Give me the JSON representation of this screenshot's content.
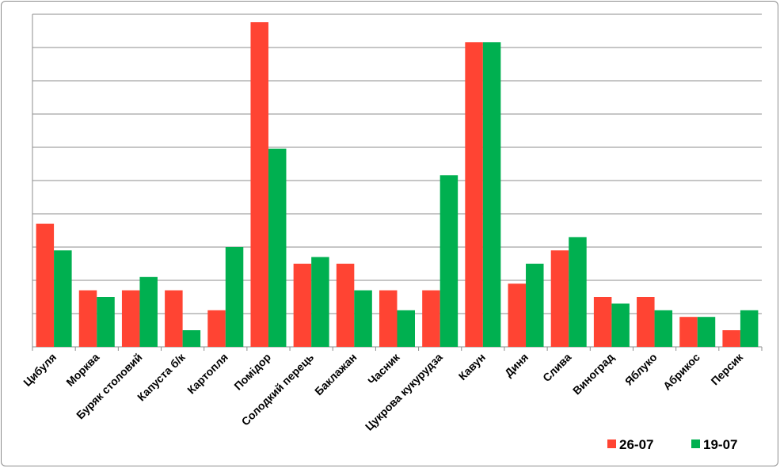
{
  "chart_data": {
    "type": "bar",
    "title": "",
    "xlabel": "",
    "ylabel": "",
    "ylim": [
      0,
      50
    ],
    "grid": true,
    "legend_position": "bottom-right",
    "categories": [
      "Цибуля",
      "Морква",
      "Буряк столовий",
      "Капуста б/к",
      "Картопля",
      "Помідор",
      "Солодкий перець",
      "Баклажан",
      "Часник",
      "Цукрова кукурудза",
      "Кавун",
      "Диня",
      "Слива",
      "Виноград",
      "Яблуко",
      "Абрикос",
      "Персик"
    ],
    "series": [
      {
        "name": "26-07",
        "color": "#ff4433",
        "values": [
          18.5,
          8.5,
          8.5,
          8.5,
          5.5,
          48.8,
          12.5,
          12.5,
          8.5,
          8.5,
          45.8,
          9.5,
          14.5,
          7.5,
          7.5,
          4.5,
          2.5
        ]
      },
      {
        "name": "19-07",
        "color": "#00b050",
        "values": [
          14.5,
          7.5,
          10.5,
          2.5,
          15.0,
          29.8,
          13.5,
          8.5,
          5.5,
          25.8,
          45.8,
          12.5,
          16.5,
          6.5,
          5.5,
          4.5,
          5.5
        ]
      }
    ]
  }
}
